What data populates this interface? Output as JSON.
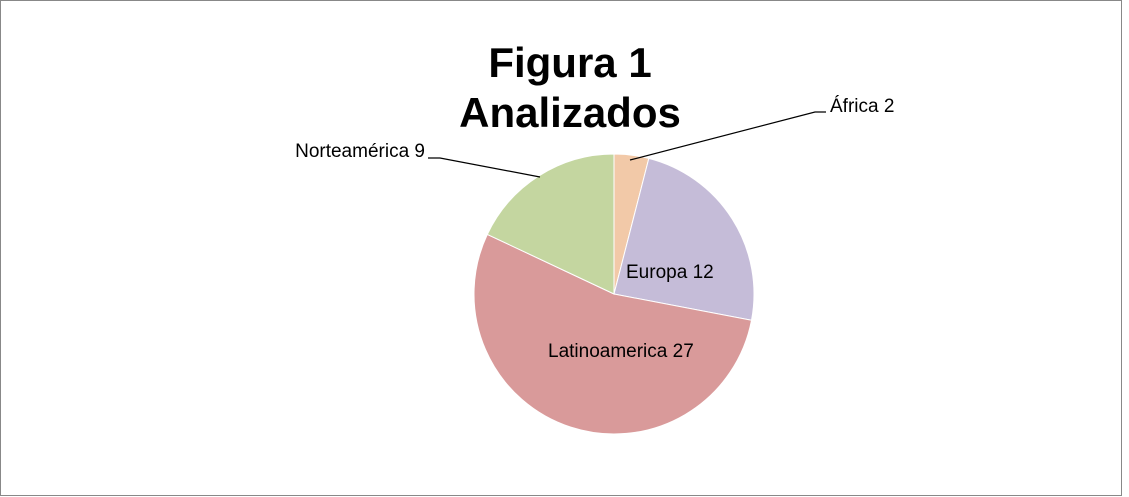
{
  "chart_data": {
    "type": "pie",
    "title": "Figura 1 Analizados",
    "categories": [
      "África",
      "Europa",
      "Latinoamerica",
      "Norteamérica"
    ],
    "values": [
      2,
      12,
      27,
      9
    ],
    "colors": [
      "#f2c9a8",
      "#c5bcd8",
      "#d99a9a",
      "#c4d6a0"
    ]
  }
}
